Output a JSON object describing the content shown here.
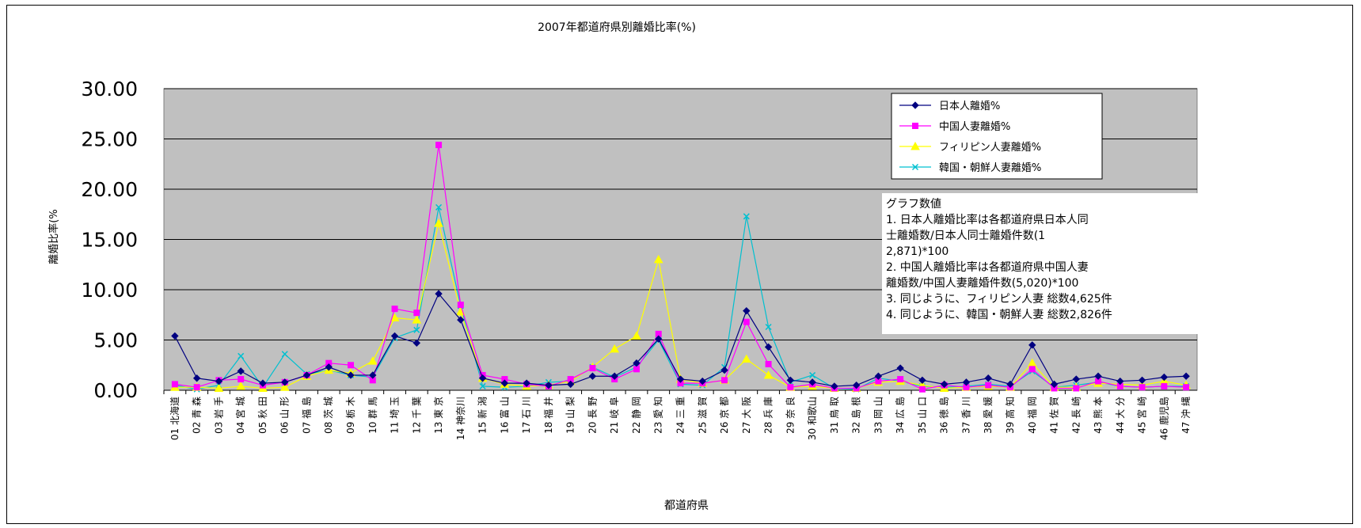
{
  "chart_data": {
    "type": "line",
    "title": "2007年都道府県別離婚比率(%)",
    "xlabel": "都道府県",
    "ylabel": "離婚比率(%",
    "ylim": [
      0,
      30
    ],
    "yticks": [
      "0.00",
      "5.00",
      "10.00",
      "15.00",
      "20.00",
      "25.00",
      "30.00"
    ],
    "grid": true,
    "legend_position": "top-right",
    "categories": [
      "01 北海道",
      "02 青 森",
      "03 岩 手",
      "04 宮 城",
      "05 秋 田",
      "06 山 形",
      "07 福 島",
      "08 茨 城",
      "09 栃 木",
      "10 群 馬",
      "11 埼 玉",
      "12 千 葉",
      "13 東 京",
      "14 神奈川",
      "15 新 潟",
      "16 富 山",
      "17 石 川",
      "18 福 井",
      "19 山 梨",
      "20 長 野",
      "21 岐 阜",
      "22 静 岡",
      "23 愛 知",
      "24 三 重",
      "25 滋 賀",
      "26 京 都",
      "27 大 阪",
      "28 兵 庫",
      "29 奈 良",
      "30 和歌山",
      "31 鳥 取",
      "32 島 根",
      "33 岡 山",
      "34 広 島",
      "35 山 口",
      "36 徳 島",
      "37 香 川",
      "38 愛 媛",
      "39 高 知",
      "40 福 岡",
      "41 佐 賀",
      "42 長 崎",
      "43 熊 本",
      "44 大 分",
      "45 宮 崎",
      "46 鹿児島",
      "47 沖 縄"
    ],
    "series": [
      {
        "name": "日本人離婚%",
        "color": "#000080",
        "marker": "diamond",
        "values": [
          5.4,
          1.2,
          0.9,
          1.9,
          0.7,
          0.8,
          1.5,
          2.3,
          1.5,
          1.5,
          5.4,
          4.7,
          9.6,
          7.0,
          1.2,
          0.7,
          0.7,
          0.5,
          0.6,
          1.4,
          1.4,
          2.7,
          5.1,
          1.1,
          0.9,
          2.0,
          7.9,
          4.3,
          1.0,
          0.8,
          0.4,
          0.5,
          1.4,
          2.2,
          1.0,
          0.6,
          0.8,
          1.2,
          0.6,
          4.5,
          0.6,
          1.1,
          1.4,
          0.9,
          1.0,
          1.3,
          1.4
        ]
      },
      {
        "name": "中国人妻離婚%",
        "color": "#ff00ff",
        "marker": "square",
        "values": [
          0.6,
          0.3,
          1.0,
          1.1,
          0.5,
          0.8,
          1.5,
          2.7,
          2.5,
          1.0,
          8.1,
          7.7,
          24.4,
          8.5,
          1.5,
          1.1,
          0.6,
          0.4,
          1.1,
          2.2,
          1.1,
          2.1,
          5.6,
          0.7,
          0.7,
          1.0,
          6.8,
          2.6,
          0.3,
          0.6,
          0.2,
          0.2,
          0.9,
          1.1,
          0.1,
          0.5,
          0.3,
          0.5,
          0.3,
          2.1,
          0.2,
          0.2,
          0.9,
          0.4,
          0.3,
          0.4,
          0.3
        ]
      },
      {
        "name": "フィリピン人妻離婚%",
        "color": "#ffff00",
        "marker": "triangle",
        "values": [
          0.3,
          0.3,
          0.2,
          0.4,
          0.2,
          0.3,
          1.4,
          2.0,
          1.7,
          2.9,
          7.2,
          7.0,
          16.6,
          7.8,
          1.2,
          0.6,
          0.4,
          0.5,
          0.9,
          2.3,
          4.1,
          5.4,
          13.0,
          1.1,
          0.7,
          1.0,
          3.1,
          1.5,
          0.3,
          0.4,
          0.2,
          0.2,
          0.8,
          0.9,
          0.5,
          0.2,
          0.3,
          0.4,
          0.3,
          2.7,
          0.3,
          0.3,
          0.7,
          0.6,
          0.5,
          0.9,
          0.5
        ]
      },
      {
        "name": "韓国・朝鮮人妻離婚%",
        "color": "#00c0d0",
        "marker": "x",
        "values": [
          0.5,
          0.1,
          0.5,
          3.4,
          0.3,
          3.6,
          1.6,
          2.0,
          1.5,
          1.3,
          5.2,
          6.0,
          18.2,
          8.4,
          0.4,
          0.3,
          0.4,
          0.8,
          0.9,
          2.3,
          1.3,
          2.3,
          5.0,
          0.6,
          0.5,
          2.3,
          17.3,
          6.3,
          0.8,
          1.5,
          0.2,
          0.1,
          1.2,
          0.9,
          0.4,
          0.3,
          0.4,
          0.6,
          0.4,
          1.9,
          0.3,
          0.5,
          0.8,
          0.4,
          0.3,
          0.4,
          0.4
        ]
      }
    ],
    "annotation_lines": [
      "グラフ数値",
      "1. 日本人離婚比率は各都道府県日本人同",
      "士離婚数/日本人同士離婚件数(1",
      "2,871)*100",
      "2. 中国人離婚比率は各都道府県中国人妻",
      "離婚数/中国人妻離婚件数(5,020)*100",
      "3. 同じように、フィリピン人妻  総数4,625件",
      "4. 同じように、韓国・朝鮮人妻  総数2,826件"
    ]
  }
}
